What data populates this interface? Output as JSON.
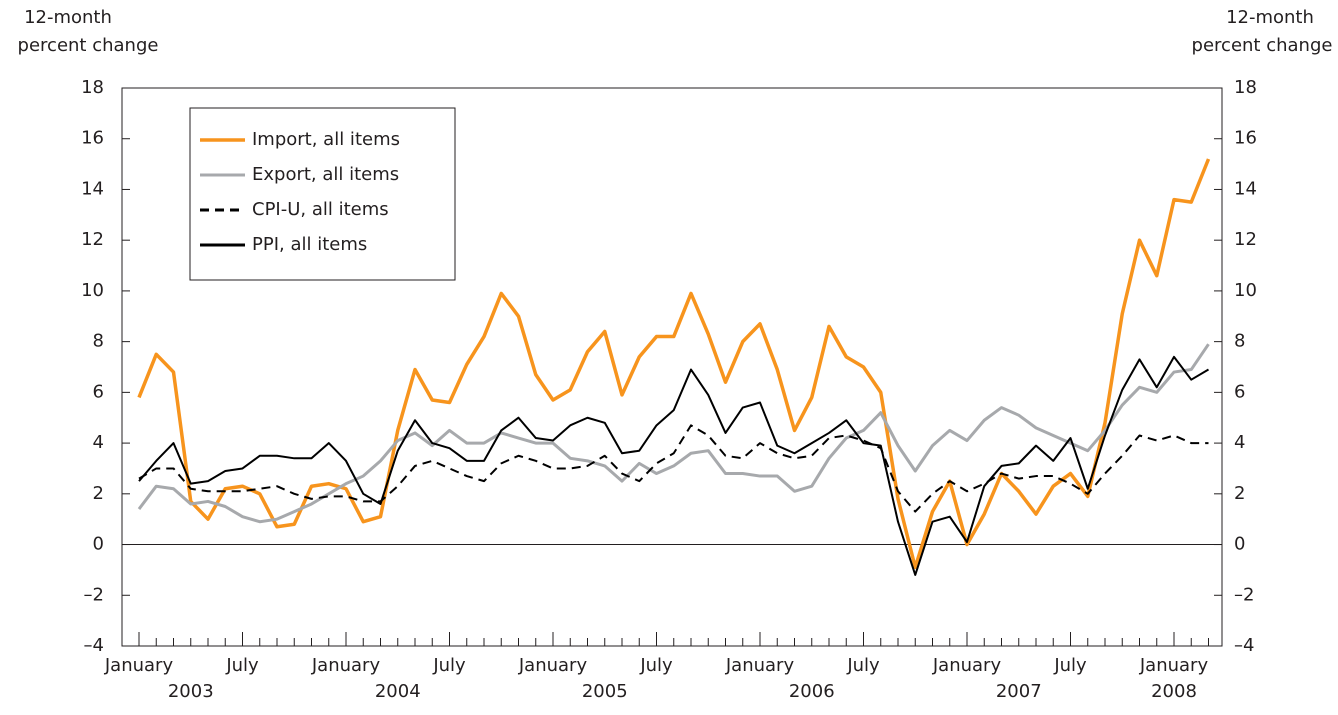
{
  "chart_data": {
    "type": "line",
    "ylabel": [
      "12-month",
      "percent  change"
    ],
    "y2label": [
      "12-month",
      "percent  change"
    ],
    "categories": [
      "January",
      null,
      null,
      null,
      null,
      null,
      "July",
      null,
      null,
      null,
      null,
      null,
      "January",
      null,
      null,
      null,
      null,
      null,
      "July",
      null,
      null,
      null,
      null,
      null,
      "January",
      null,
      null,
      null,
      null,
      null,
      "July",
      null,
      null,
      null,
      null,
      null,
      "January",
      null,
      null,
      null,
      null,
      null,
      "July",
      null,
      null,
      null,
      null,
      null,
      "January",
      null,
      null,
      null,
      null,
      null,
      "July",
      null,
      null,
      null,
      null,
      null,
      "January",
      null,
      null
    ],
    "years": [
      "2003",
      "2004",
      "2005",
      "2006",
      "2007",
      "2008"
    ],
    "series": [
      {
        "name": "Import, all items",
        "color": "#f7941d",
        "dash": false,
        "values": [
          5.8,
          7.5,
          6.8,
          1.7,
          1.0,
          2.2,
          2.3,
          2.0,
          0.7,
          0.8,
          2.3,
          2.4,
          2.2,
          0.9,
          1.1,
          4.5,
          6.9,
          5.7,
          5.6,
          7.1,
          8.2,
          9.9,
          9.0,
          6.7,
          5.7,
          6.1,
          7.6,
          8.4,
          5.9,
          7.4,
          8.2,
          8.2,
          9.9,
          8.3,
          6.4,
          8.0,
          8.7,
          6.9,
          4.5,
          5.8,
          8.6,
          7.4,
          7.0,
          6.0,
          1.8,
          -0.9,
          1.3,
          2.5,
          0.0,
          1.2,
          2.8,
          2.1,
          1.2,
          2.3,
          2.8,
          1.9,
          4.8,
          9.1,
          12.0,
          10.6,
          13.6,
          13.5,
          15.2
        ]
      },
      {
        "name": "Export, all items",
        "color": "#a7a9ac",
        "dash": false,
        "values": [
          1.4,
          2.3,
          2.2,
          1.6,
          1.7,
          1.5,
          1.1,
          0.9,
          1.0,
          1.3,
          1.6,
          2.0,
          2.4,
          2.7,
          3.3,
          4.1,
          4.4,
          3.9,
          4.5,
          4.0,
          4.0,
          4.4,
          4.2,
          4.0,
          4.0,
          3.4,
          3.3,
          3.1,
          2.5,
          3.2,
          2.8,
          3.1,
          3.6,
          3.7,
          2.8,
          2.8,
          2.7,
          2.7,
          2.1,
          2.3,
          3.4,
          4.2,
          4.5,
          5.2,
          3.9,
          2.9,
          3.9,
          4.5,
          4.1,
          4.9,
          5.4,
          5.1,
          4.6,
          4.3,
          4.0,
          3.7,
          4.5,
          5.5,
          6.2,
          6.0,
          6.8,
          6.9,
          7.9
        ]
      },
      {
        "name": "CPI-U, all items",
        "color": "#000000",
        "dash": true,
        "values": [
          2.6,
          3.0,
          3.0,
          2.2,
          2.1,
          2.1,
          2.1,
          2.2,
          2.3,
          2.0,
          1.8,
          1.9,
          1.9,
          1.7,
          1.7,
          2.3,
          3.1,
          3.3,
          3.0,
          2.7,
          2.5,
          3.2,
          3.5,
          3.3,
          3.0,
          3.0,
          3.1,
          3.5,
          2.8,
          2.5,
          3.2,
          3.6,
          4.7,
          4.3,
          3.5,
          3.4,
          4.0,
          3.6,
          3.4,
          3.5,
          4.2,
          4.3,
          4.1,
          3.8,
          2.1,
          1.3,
          2.0,
          2.5,
          2.1,
          2.4,
          2.8,
          2.6,
          2.7,
          2.7,
          2.4,
          2.0,
          2.8,
          3.5,
          4.3,
          4.1,
          4.3,
          4.0,
          4.0
        ]
      },
      {
        "name": "PPI, all items",
        "color": "#000000",
        "dash": false,
        "values": [
          2.5,
          3.3,
          4.0,
          2.4,
          2.5,
          2.9,
          3.0,
          3.5,
          3.5,
          3.4,
          3.4,
          4.0,
          3.3,
          2.0,
          1.6,
          3.7,
          4.9,
          4.0,
          3.8,
          3.3,
          3.3,
          4.5,
          5.0,
          4.2,
          4.1,
          4.7,
          5.0,
          4.8,
          3.6,
          3.7,
          4.7,
          5.3,
          6.9,
          5.9,
          4.4,
          5.4,
          5.6,
          3.9,
          3.6,
          4.0,
          4.4,
          4.9,
          4.0,
          3.9,
          0.9,
          -1.2,
          0.9,
          1.1,
          0.1,
          2.3,
          3.1,
          3.2,
          3.9,
          3.3,
          4.2,
          2.2,
          4.3,
          6.1,
          7.3,
          6.2,
          7.4,
          6.5,
          6.9
        ]
      }
    ],
    "ylim": [
      -4,
      18
    ],
    "yticks": [
      {
        "value": -4,
        "label": "–4"
      },
      {
        "value": -2,
        "label": "–2"
      },
      0,
      2,
      4,
      6,
      8,
      10,
      12,
      14,
      16,
      18
    ],
    "y2lim": [
      -4,
      18
    ],
    "y2ticks": [
      {
        "value": -4,
        "label": "–4"
      },
      {
        "value": -2,
        "label": "–2"
      },
      0,
      2,
      4,
      6,
      8,
      10,
      12,
      14,
      16,
      18
    ],
    "zero_line": true,
    "legend": "upper left"
  }
}
